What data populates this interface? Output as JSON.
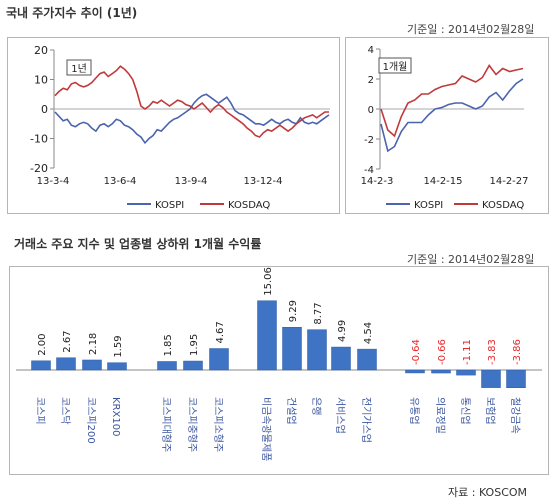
{
  "colors": {
    "kospi": "#4a64ad",
    "kosdaq": "#c0393b",
    "bar": "#3f74c4",
    "negative_label": "#e8262a"
  },
  "section1": {
    "title": "국내 주가지수 추이 (1년)",
    "base_date": "기준일 : 2014년02월28일"
  },
  "section2": {
    "title": "거래소 주요 지수 및 업종별 상하위 1개월 수익률",
    "base_date": "기준일 : 2014년02월28일"
  },
  "source": "자료 : KOSCOM",
  "chart_data": [
    {
      "type": "line",
      "tag": "1년",
      "ylim": [
        -20,
        20
      ],
      "yticks": [
        "20",
        "10",
        "0",
        "-10",
        "-20"
      ],
      "xtick_labels": [
        "13-3-4",
        "13-6-4",
        "13-9-4",
        "13-12-4"
      ],
      "legend": "bottom",
      "series": [
        {
          "name": "KOSPI",
          "values": [
            -1.0,
            -2.5,
            -4.0,
            -3.5,
            -5.5,
            -6.0,
            -5.0,
            -4.5,
            -5.0,
            -6.5,
            -7.5,
            -5.5,
            -5.0,
            -6.0,
            -5.0,
            -3.5,
            -4.0,
            -5.5,
            -6.0,
            -7.0,
            -8.5,
            -9.5,
            -11.5,
            -10.0,
            -9.0,
            -7.0,
            -7.5,
            -6.0,
            -4.5,
            -3.5,
            -3.0,
            -2.0,
            -1.0,
            0.0,
            2.0,
            3.5,
            4.5,
            5.0,
            4.0,
            3.0,
            2.0,
            3.0,
            4.0,
            2.0,
            -0.5,
            -1.5,
            -2.0,
            -3.0,
            -4.0,
            -5.0,
            -5.0,
            -5.5,
            -4.5,
            -3.5,
            -4.5,
            -5.0,
            -4.0,
            -3.5,
            -4.5,
            -5.0,
            -3.0,
            -4.5,
            -5.0,
            -4.5,
            -5.0,
            -4.0,
            -3.0,
            -2.0
          ]
        },
        {
          "name": "KOSDAQ",
          "values": [
            4.5,
            6.0,
            7.0,
            6.5,
            8.5,
            9.0,
            8.0,
            7.5,
            8.0,
            9.0,
            10.5,
            12.0,
            12.5,
            11.0,
            12.0,
            13.0,
            14.5,
            13.5,
            12.0,
            10.0,
            6.0,
            1.0,
            0.0,
            1.0,
            2.5,
            2.0,
            3.0,
            2.0,
            1.0,
            2.0,
            3.0,
            2.5,
            1.5,
            1.0,
            0.0,
            1.0,
            2.0,
            0.5,
            -1.0,
            0.5,
            1.5,
            0.5,
            -1.0,
            -2.0,
            -3.0,
            -4.0,
            -5.0,
            -6.5,
            -7.5,
            -9.0,
            -9.5,
            -8.0,
            -7.0,
            -7.5,
            -6.5,
            -5.5,
            -6.5,
            -7.5,
            -6.5,
            -5.0,
            -4.0,
            -3.0,
            -2.5,
            -2.0,
            -3.0,
            -2.0,
            -1.0,
            -1.0
          ]
        }
      ]
    },
    {
      "type": "line",
      "tag": "1개월",
      "ylim": [
        -4,
        4
      ],
      "yticks": [
        "4",
        "2",
        "0",
        "-2",
        "-4"
      ],
      "xtick_labels": [
        "14-2-3",
        "14-2-15",
        "14-2-27"
      ],
      "legend": "bottom",
      "series": [
        {
          "name": "KOSPI",
          "values": [
            -1.0,
            -2.8,
            -2.5,
            -1.5,
            -0.9,
            -0.9,
            -0.9,
            -0.4,
            0.0,
            0.1,
            0.3,
            0.4,
            0.4,
            0.2,
            0.0,
            0.2,
            0.8,
            1.1,
            0.6,
            1.2,
            1.7,
            2.0
          ]
        },
        {
          "name": "KOSDAQ",
          "values": [
            0.0,
            -1.4,
            -1.8,
            -0.5,
            0.4,
            0.6,
            1.0,
            1.0,
            1.3,
            1.5,
            1.6,
            1.7,
            2.2,
            2.0,
            1.8,
            2.1,
            2.9,
            2.3,
            2.7,
            2.5,
            2.6,
            2.7
          ]
        }
      ]
    },
    {
      "type": "bar",
      "groups": [
        {
          "items": [
            {
              "label": "코스피",
              "value": "2.00"
            },
            {
              "label": "코스닥",
              "value": "2.67"
            },
            {
              "label": "코스피200",
              "value": "2.18"
            },
            {
              "label": "KRX100",
              "value": "1.59"
            }
          ]
        },
        {
          "items": [
            {
              "label": "코스피대형주",
              "value": "1.85"
            },
            {
              "label": "코스피중형주",
              "value": "1.95"
            },
            {
              "label": "코스피소형주",
              "value": "4.67"
            }
          ]
        },
        {
          "items": [
            {
              "label": "비금속광물제품",
              "value": "15.06"
            },
            {
              "label": "건설업",
              "value": "9.29"
            },
            {
              "label": "은행",
              "value": "8.77"
            },
            {
              "label": "서비스업",
              "value": "4.99"
            },
            {
              "label": "전기가스업",
              "value": "4.54"
            }
          ]
        },
        {
          "items": [
            {
              "label": "유통업",
              "value": "-0.64"
            },
            {
              "label": "의료정밀",
              "value": "-0.66"
            },
            {
              "label": "통신업",
              "value": "-1.11"
            },
            {
              "label": "보험업",
              "value": "-3.83"
            },
            {
              "label": "철강금속",
              "value": "-3.86"
            }
          ]
        }
      ]
    }
  ]
}
